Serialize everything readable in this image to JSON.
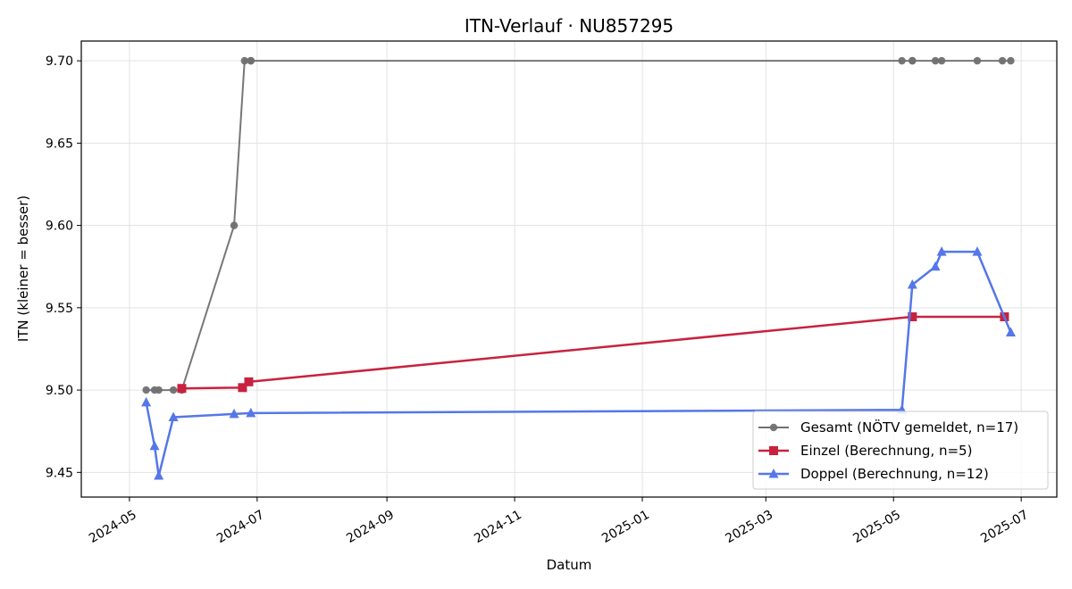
{
  "chart_data": {
    "type": "line",
    "title": "ITN-Verlauf · NU857295",
    "xlabel": "Datum",
    "ylabel": "ITN  (kleiner = besser)",
    "x_axis_type": "date",
    "xlim": [
      "2024-04-08",
      "2025-07-18"
    ],
    "ylim": [
      9.435,
      9.712
    ],
    "x_ticks": [
      "2024-05",
      "2024-07",
      "2024-09",
      "2024-11",
      "2025-01",
      "2025-03",
      "2025-05",
      "2025-07"
    ],
    "x_tick_dates": [
      "2024-05-01",
      "2024-07-01",
      "2024-09-01",
      "2024-11-01",
      "2025-01-01",
      "2025-03-01",
      "2025-05-01",
      "2025-07-01"
    ],
    "y_ticks": [
      9.45,
      9.5,
      9.55,
      9.6,
      9.65,
      9.7
    ],
    "y_tick_labels": [
      "9.45",
      "9.50",
      "9.55",
      "9.60",
      "9.65",
      "9.70"
    ],
    "grid": true,
    "legend_position": "lower-right",
    "series": [
      {
        "name": "Gesamt (NÖTV gemeldet, n=17)",
        "color": "#707070",
        "marker": "circle",
        "points": [
          {
            "x": "2024-05-09",
            "y": 9.5
          },
          {
            "x": "2024-05-13",
            "y": 9.5
          },
          {
            "x": "2024-05-15",
            "y": 9.5
          },
          {
            "x": "2024-05-22",
            "y": 9.5
          },
          {
            "x": "2024-05-26",
            "y": 9.5
          },
          {
            "x": "2024-06-20",
            "y": 9.6
          },
          {
            "x": "2024-06-25",
            "y": 9.7
          },
          {
            "x": "2024-06-28",
            "y": 9.7
          },
          {
            "x": "2024-06-28",
            "y": 9.7
          },
          {
            "x": "2025-05-05",
            "y": 9.7
          },
          {
            "x": "2025-05-10",
            "y": 9.7
          },
          {
            "x": "2025-05-10",
            "y": 9.7
          },
          {
            "x": "2025-05-21",
            "y": 9.7
          },
          {
            "x": "2025-05-24",
            "y": 9.7
          },
          {
            "x": "2025-06-10",
            "y": 9.7
          },
          {
            "x": "2025-06-22",
            "y": 9.7
          },
          {
            "x": "2025-06-26",
            "y": 9.7
          }
        ]
      },
      {
        "name": "Einzel (Berechnung, n=5)",
        "color": "#c8223f",
        "marker": "square",
        "points": [
          {
            "x": "2024-05-26",
            "y": 9.501
          },
          {
            "x": "2024-06-24",
            "y": 9.5015
          },
          {
            "x": "2024-06-27",
            "y": 9.505
          },
          {
            "x": "2025-05-10",
            "y": 9.5445
          },
          {
            "x": "2025-06-23",
            "y": 9.5445
          }
        ]
      },
      {
        "name": "Doppel (Berechnung, n=12)",
        "color": "#5577e8",
        "marker": "triangle",
        "points": [
          {
            "x": "2024-05-09",
            "y": 9.4925
          },
          {
            "x": "2024-05-13",
            "y": 9.466
          },
          {
            "x": "2024-05-15",
            "y": 9.448
          },
          {
            "x": "2024-05-22",
            "y": 9.4835
          },
          {
            "x": "2024-06-20",
            "y": 9.4855
          },
          {
            "x": "2024-06-28",
            "y": 9.486
          },
          {
            "x": "2025-05-05",
            "y": 9.488
          },
          {
            "x": "2025-05-10",
            "y": 9.564
          },
          {
            "x": "2025-05-21",
            "y": 9.575
          },
          {
            "x": "2025-05-24",
            "y": 9.584
          },
          {
            "x": "2025-06-10",
            "y": 9.584
          },
          {
            "x": "2025-06-26",
            "y": 9.535
          }
        ]
      }
    ]
  }
}
